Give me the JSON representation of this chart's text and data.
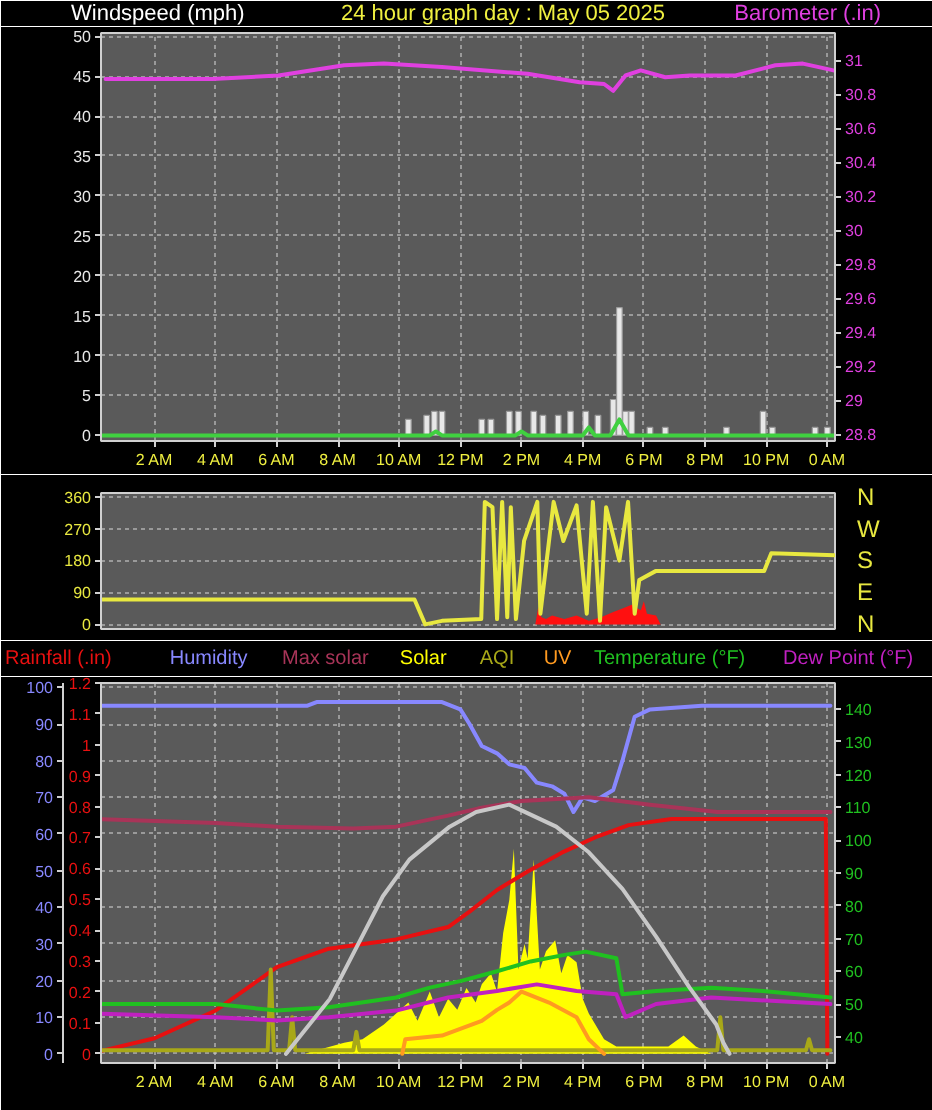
{
  "chart_data": [
    {
      "type": "bar",
      "title": "24 hour graph day : May 05 2025",
      "ylabel": "Windspeed (mph)",
      "y2label": "Barometer (.in)",
      "xlim": [
        "2025-05-05T00:15",
        "2025-05-06T00:15"
      ],
      "xticks": [
        {
          "value": "2025-05-05T02:00",
          "label": "2 AM"
        },
        {
          "value": "2025-05-05T04:00",
          "label": "4 AM"
        },
        {
          "value": "2025-05-05T06:00",
          "label": "6 AM"
        },
        {
          "value": "2025-05-05T08:00",
          "label": "8 AM"
        },
        {
          "value": "2025-05-05T10:00",
          "label": "10 AM"
        },
        {
          "value": "2025-05-05T12:00",
          "label": "12 PM"
        },
        {
          "value": "2025-05-05T14:00",
          "label": "2 PM"
        },
        {
          "value": "2025-05-05T16:00",
          "label": "4 PM"
        },
        {
          "value": "2025-05-05T18:00",
          "label": "6 PM"
        },
        {
          "value": "2025-05-05T20:00",
          "label": "8 PM"
        },
        {
          "value": "2025-05-05T22:00",
          "label": "10 PM"
        },
        {
          "value": "2025-05-06T00:00",
          "label": "0 AM"
        }
      ],
      "ylim": [
        -0.7,
        50.4
      ],
      "yticks": [
        0,
        5,
        10,
        15,
        20,
        25,
        30,
        35,
        40,
        45,
        50
      ],
      "y2lim": [
        28.76,
        31.16
      ],
      "y2ticks": [
        28.8,
        29,
        29.2,
        29.4,
        29.6,
        29.8,
        30,
        30.2,
        30.4,
        30.6,
        30.8,
        31
      ],
      "grid": true,
      "series": [
        {
          "color": "#e8e8e8",
          "x": [
            "2025-05-05T10:18",
            "2025-05-05T10:54",
            "2025-05-05T11:09",
            "2025-05-05T11:24",
            "2025-05-05T12:42",
            "2025-05-05T13:00",
            "2025-05-05T13:36",
            "2025-05-05T13:54",
            "2025-05-05T14:24",
            "2025-05-05T14:42",
            "2025-05-05T15:12",
            "2025-05-05T15:36",
            "2025-05-05T16:06",
            "2025-05-05T16:30",
            "2025-05-05T17:00",
            "2025-05-05T17:12",
            "2025-05-05T17:24",
            "2025-05-05T17:36",
            "2025-05-05T18:12",
            "2025-05-05T18:42",
            "2025-05-05T20:42",
            "2025-05-05T21:54",
            "2025-05-05T22:12",
            "2025-05-05T23:36",
            "2025-05-06T00:00"
          ],
          "values": [
            2,
            2.5,
            3,
            3,
            2,
            2,
            3,
            3,
            3,
            2.5,
            2.5,
            3,
            3,
            2.5,
            4.5,
            16,
            3,
            3,
            1,
            1,
            1,
            3,
            1,
            1,
            1
          ]
        },
        {
          "type": "line",
          "color": "#40d040",
          "x": [
            "2025-05-05T00:18",
            "2025-05-05T11:00",
            "2025-05-05T11:12",
            "2025-05-05T11:24",
            "2025-05-05T13:48",
            "2025-05-05T14:00",
            "2025-05-05T14:12",
            "2025-05-05T16:00",
            "2025-05-05T16:12",
            "2025-05-05T16:24",
            "2025-05-05T16:54",
            "2025-05-05T17:12",
            "2025-05-05T17:30",
            "2025-05-06T00:12"
          ],
          "values": [
            0,
            0,
            0.5,
            0,
            0,
            0.5,
            0,
            0,
            1,
            0,
            0,
            2,
            0,
            0
          ]
        },
        {
          "type": "line",
          "color": "#e040e0",
          "axis": "y2",
          "x": [
            "2025-05-05T00:24",
            "2025-05-05T03:54",
            "2025-05-05T06:03",
            "2025-05-05T08:12",
            "2025-05-05T09:30",
            "2025-05-05T11:24",
            "2025-05-05T14:12",
            "2025-05-05T15:54",
            "2025-05-05T16:42",
            "2025-05-05T17:00",
            "2025-05-05T17:24",
            "2025-05-05T17:54",
            "2025-05-05T18:42",
            "2025-05-05T19:30",
            "2025-05-05T21:00",
            "2025-05-05T22:18",
            "2025-05-05T23:12",
            "2025-05-06T00:12"
          ],
          "values": [
            30.89,
            30.89,
            30.91,
            30.97,
            30.98,
            30.96,
            30.92,
            30.87,
            30.86,
            30.82,
            30.91,
            30.94,
            30.9,
            30.91,
            30.91,
            30.97,
            30.98,
            30.94
          ]
        }
      ]
    },
    {
      "type": "line",
      "tick_labels": "y",
      "xlim": [
        "2025-05-05T00:15",
        "2025-05-06T00:15"
      ],
      "ylim": [
        -13,
        370
      ],
      "yticks": [
        0,
        90,
        180,
        270,
        360
      ],
      "grid": "y",
      "annotations": [
        "N",
        "W",
        "S",
        "E",
        "N"
      ],
      "series": [
        {
          "color": "#e8e840",
          "x": [
            "2025-05-05T00:18",
            "2025-05-05T10:30",
            "2025-05-05T10:51",
            "2025-05-05T11:24",
            "2025-05-05T12:41",
            "2025-05-05T12:48",
            "2025-05-05T13:03",
            "2025-05-05T13:12",
            "2025-05-05T13:22",
            "2025-05-05T13:32",
            "2025-05-05T13:39",
            "2025-05-05T13:49",
            "2025-05-05T14:05",
            "2025-05-05T14:31",
            "2025-05-05T14:37",
            "2025-05-05T15:03",
            "2025-05-05T15:22",
            "2025-05-05T15:48",
            "2025-05-05T16:08",
            "2025-05-05T16:20",
            "2025-05-05T16:34",
            "2025-05-05T16:46",
            "2025-05-05T17:12",
            "2025-05-05T17:29",
            "2025-05-05T17:42",
            "2025-05-05T17:51",
            "2025-05-05T18:23",
            "2025-05-05T21:56",
            "2025-05-05T22:10",
            "2025-05-06T00:15"
          ],
          "values": [
            70,
            70,
            0,
            10,
            15,
            345,
            330,
            15,
            345,
            20,
            330,
            15,
            235,
            345,
            30,
            345,
            235,
            335,
            30,
            345,
            10,
            330,
            180,
            345,
            30,
            125,
            150,
            150,
            200,
            195
          ]
        },
        {
          "type": "area",
          "color": "#ff1010",
          "x": [
            "2025-05-05T14:27",
            "2025-05-05T14:33",
            "2025-05-05T14:39",
            "2025-05-05T14:48",
            "2025-05-05T15:00",
            "2025-05-05T15:24",
            "2025-05-05T15:48",
            "2025-05-05T16:12",
            "2025-05-05T16:36",
            "2025-05-05T17:00",
            "2025-05-05T17:18",
            "2025-05-05T17:36",
            "2025-05-05T17:54",
            "2025-05-05T18:00",
            "2025-05-05T18:06",
            "2025-05-05T18:24",
            "2025-05-05T18:33"
          ],
          "values": [
            0,
            50,
            20,
            15,
            25,
            15,
            25,
            10,
            20,
            35,
            45,
            55,
            40,
            65,
            30,
            25,
            0
          ]
        }
      ]
    },
    {
      "type": "line",
      "legend": "top",
      "xlim": [
        "2025-05-05T00:15",
        "2025-05-06T00:15"
      ],
      "xticks": [
        {
          "value": "2025-05-05T02:00",
          "label": "2 AM"
        },
        {
          "value": "2025-05-05T04:00",
          "label": "4 AM"
        },
        {
          "value": "2025-05-05T06:00",
          "label": "6 AM"
        },
        {
          "value": "2025-05-05T08:00",
          "label": "8 AM"
        },
        {
          "value": "2025-05-05T10:00",
          "label": "10 AM"
        },
        {
          "value": "2025-05-05T12:00",
          "label": "12 PM"
        },
        {
          "value": "2025-05-05T14:00",
          "label": "2 PM"
        },
        {
          "value": "2025-05-05T16:00",
          "label": "4 PM"
        },
        {
          "value": "2025-05-05T18:00",
          "label": "6 PM"
        },
        {
          "value": "2025-05-05T20:00",
          "label": "8 PM"
        },
        {
          "value": "2025-05-05T22:00",
          "label": "10 PM"
        },
        {
          "value": "2025-05-06T00:00",
          "label": "0 AM"
        }
      ],
      "ylim": [
        -2.5,
        101.2
      ],
      "yticks": [
        0,
        10,
        20,
        30,
        40,
        50,
        60,
        70,
        80,
        90,
        100
      ],
      "y2lim": [
        -0.03,
        1.2
      ],
      "y2ticks": [
        0,
        0.1,
        0.2,
        0.3,
        0.4,
        0.5,
        0.6,
        0.7,
        0.8,
        0.9,
        1,
        1.1,
        1.2
      ],
      "y3lim": [
        32,
        148
      ],
      "y3ticks": [
        40,
        50,
        60,
        70,
        80,
        90,
        100,
        110,
        120,
        130,
        140
      ],
      "grid": true,
      "series": [
        {
          "name": "Rainfall (.in)",
          "color": "#e81010",
          "axis": "y2",
          "x": [
            "2025-05-05T00:18",
            "2025-05-05T02:00",
            "2025-05-05T04:00",
            "2025-05-05T05:00",
            "2025-05-05T06:00",
            "2025-05-05T07:42",
            "2025-05-05T09:54",
            "2025-05-05T11:36",
            "2025-05-05T12:18",
            "2025-05-05T13:12",
            "2025-05-05T14:12",
            "2025-05-05T15:18",
            "2025-05-05T16:24",
            "2025-05-05T17:30",
            "2025-05-05T18:54",
            "2025-05-05T23:57",
            "2025-05-06T00:00"
          ],
          "values": [
            0.01,
            0.05,
            0.14,
            0.21,
            0.28,
            0.34,
            0.37,
            0.41,
            0.46,
            0.53,
            0.59,
            0.65,
            0.7,
            0.74,
            0.76,
            0.76,
            0
          ]
        },
        {
          "name": "Humidity",
          "color": "#8888ff",
          "x": [
            "2025-05-05T00:18",
            "2025-05-05T07:00",
            "2025-05-05T07:18",
            "2025-05-05T11:24",
            "2025-05-05T12:00",
            "2025-05-05T12:18",
            "2025-05-05T12:42",
            "2025-05-05T13:12",
            "2025-05-05T13:36",
            "2025-05-05T14:06",
            "2025-05-05T14:30",
            "2025-05-05T15:00",
            "2025-05-05T15:24",
            "2025-05-05T15:42",
            "2025-05-05T16:00",
            "2025-05-05T16:24",
            "2025-05-05T17:00",
            "2025-05-05T17:18",
            "2025-05-05T17:42",
            "2025-05-05T18:12",
            "2025-05-05T19:54",
            "2025-05-06T00:06"
          ],
          "values": [
            95,
            95,
            96,
            96,
            94,
            90,
            84,
            82,
            79,
            78,
            74,
            73,
            71,
            66,
            70,
            69,
            72,
            80,
            92,
            94,
            95,
            95
          ]
        },
        {
          "name": "Max solar",
          "color": "#a83458",
          "x": [
            "2025-05-05T00:18",
            "2025-05-05T04:00",
            "2025-05-05T06:00",
            "2025-05-05T08:30",
            "2025-05-05T09:54",
            "2025-05-05T11:36",
            "2025-05-05T12:36",
            "2025-05-05T14:00",
            "2025-05-05T16:12",
            "2025-05-05T18:12",
            "2025-05-05T20:24",
            "2025-05-06T00:06"
          ],
          "values": [
            64,
            63,
            62,
            61.5,
            62,
            65,
            67,
            69,
            70,
            68,
            66,
            66
          ]
        },
        {
          "name": "Solar",
          "type": "area",
          "color": "#ffff00",
          "x": [
            "2025-05-05T06:54",
            "2025-05-05T08:12",
            "2025-05-05T08:48",
            "2025-05-05T09:30",
            "2025-05-05T10:18",
            "2025-05-05T10:36",
            "2025-05-05T11:00",
            "2025-05-05T11:18",
            "2025-05-05T11:36",
            "2025-05-05T11:54",
            "2025-05-05T12:12",
            "2025-05-05T12:30",
            "2025-05-05T12:42",
            "2025-05-05T13:00",
            "2025-05-05T13:12",
            "2025-05-05T13:24",
            "2025-05-05T13:36",
            "2025-05-05T13:45",
            "2025-05-05T13:54",
            "2025-05-05T14:06",
            "2025-05-05T14:12",
            "2025-05-05T14:24",
            "2025-05-05T14:36",
            "2025-05-05T14:48",
            "2025-05-05T15:06",
            "2025-05-05T15:18",
            "2025-05-05T15:30",
            "2025-05-05T15:48",
            "2025-05-05T16:00",
            "2025-05-05T16:12",
            "2025-05-05T16:42",
            "2025-05-05T17:06",
            "2025-05-05T18:48",
            "2025-05-05T19:18",
            "2025-05-05T19:42",
            "2025-05-05T20:12"
          ],
          "values": [
            0,
            3,
            4,
            8,
            14,
            9,
            17,
            10,
            15,
            12,
            18,
            14,
            19,
            22,
            17,
            33,
            42,
            56,
            23,
            30,
            26,
            53,
            23,
            28,
            31,
            22,
            27,
            25,
            15,
            11,
            4,
            2,
            2,
            5,
            2,
            0
          ]
        },
        {
          "name": "AQI",
          "color": "#a8a818",
          "x": [
            "2025-05-05T00:18",
            "2025-05-05T05:42",
            "2025-05-05T05:48",
            "2025-05-05T05:54",
            "2025-05-05T06:24",
            "2025-05-05T06:30",
            "2025-05-05T06:36",
            "2025-05-05T08:30",
            "2025-05-05T08:36",
            "2025-05-05T08:42",
            "2025-05-05T20:24",
            "2025-05-05T20:30",
            "2025-05-05T20:36",
            "2025-05-05T23:18",
            "2025-05-05T23:24",
            "2025-05-05T23:30",
            "2025-05-06T00:06"
          ],
          "values": [
            1,
            1,
            23,
            1,
            1,
            10,
            1,
            1,
            6,
            1,
            1,
            10,
            1,
            1,
            4,
            1,
            1
          ]
        },
        {
          "name": "UV",
          "color": "#ff9a20",
          "x": [
            "2025-05-05T10:06",
            "2025-05-05T10:12",
            "2025-05-05T11:24",
            "2025-05-05T12:42",
            "2025-05-05T13:12",
            "2025-05-05T13:36",
            "2025-05-05T14:00",
            "2025-05-05T14:54",
            "2025-05-05T15:48",
            "2025-05-05T16:12",
            "2025-05-05T16:42"
          ],
          "values": [
            0,
            4,
            5,
            9,
            12,
            14,
            17,
            14,
            10,
            4,
            0
          ]
        },
        {
          "name": "Temperature (°F)",
          "color": "#20c020",
          "axis": "y3",
          "x": [
            "2025-05-05T00:18",
            "2025-05-05T04:00",
            "2025-05-05T06:00",
            "2025-05-05T07:42",
            "2025-05-05T09:54",
            "2025-05-05T11:00",
            "2025-05-05T12:00",
            "2025-05-05T13:12",
            "2025-05-05T14:18",
            "2025-05-05T15:24",
            "2025-05-05T16:06",
            "2025-05-05T17:06",
            "2025-05-05T17:18",
            "2025-05-05T18:24",
            "2025-05-05T20:12",
            "2025-05-05T21:54",
            "2025-05-06T00:06"
          ],
          "values": [
            50,
            50,
            48,
            49,
            52,
            55,
            57,
            60,
            63,
            65,
            66,
            64,
            53,
            54,
            55,
            54,
            52
          ]
        },
        {
          "name": "Dew Point (°F)",
          "color": "#c020c0",
          "axis": "y3",
          "x": [
            "2025-05-05T00:18",
            "2025-05-05T04:00",
            "2025-05-05T06:00",
            "2025-05-05T07:42",
            "2025-05-05T09:54",
            "2025-05-05T11:36",
            "2025-05-05T13:12",
            "2025-05-05T14:30",
            "2025-05-05T15:48",
            "2025-05-05T17:06",
            "2025-05-05T17:24",
            "2025-05-05T18:24",
            "2025-05-05T20:12",
            "2025-05-06T00:06"
          ],
          "values": [
            47,
            46,
            45,
            46,
            48,
            52,
            54,
            56,
            54,
            53,
            46,
            50,
            52,
            50
          ]
        },
        {
          "color": "#c8c8c8",
          "x": [
            "2025-05-05T06:18",
            "2025-05-05T07:44",
            "2025-05-05T08:36",
            "2025-05-05T09:28",
            "2025-05-05T10:20",
            "2025-05-05T11:39",
            "2025-05-05T12:31",
            "2025-05-05T13:36",
            "2025-05-05T15:08",
            "2025-05-05T16:12",
            "2025-05-05T17:18",
            "2025-05-05T18:24",
            "2025-05-05T19:30",
            "2025-05-05T20:22",
            "2025-05-05T20:36",
            "2025-05-05T20:48"
          ],
          "values": [
            0,
            15,
            29,
            43,
            53,
            62,
            66,
            68,
            62,
            55,
            45,
            32,
            18,
            8,
            3,
            0
          ]
        }
      ]
    }
  ]
}
